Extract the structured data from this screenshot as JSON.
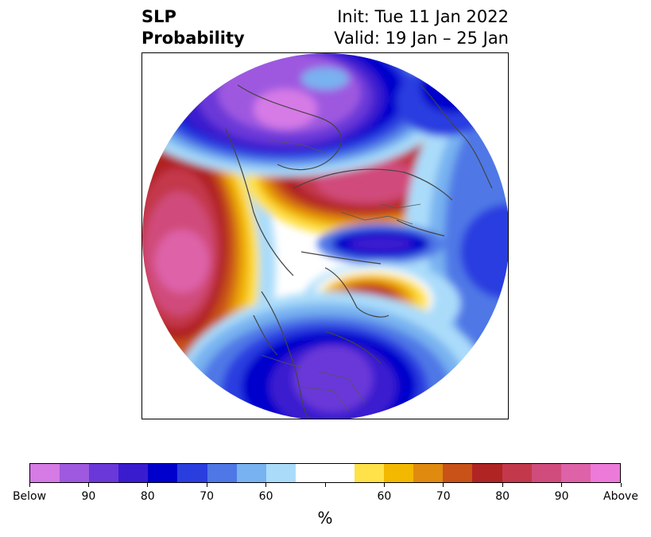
{
  "title": {
    "left_line1": "SLP",
    "left_line2": "Probability",
    "right_line1": "Init: Tue 11 Jan 2022",
    "right_line2": "Valid: 19 Jan – 25 Jan"
  },
  "colorbar": {
    "colors": [
      "#d67ae6",
      "#9e59e0",
      "#6a38d8",
      "#3a1ccf",
      "#0000cc",
      "#2a3ee0",
      "#4f78e6",
      "#78b2f0",
      "#aadcfa",
      "#ffffff",
      "#ffffff",
      "#ffe14a",
      "#f3b800",
      "#e08a10",
      "#c85218",
      "#b02424",
      "#c4384c",
      "#d04c7c",
      "#de62a8",
      "#ec7ad8"
    ],
    "tick_labels": [
      "Below",
      "90",
      "80",
      "70",
      "60",
      "",
      "60",
      "70",
      "80",
      "90",
      "Above"
    ],
    "unit_label": "%"
  },
  "map": {
    "projection": "north-polar-stereographic",
    "anomaly_regions": [
      {
        "region": "north-pacific",
        "category": "above",
        "max_probability": "above 90"
      },
      {
        "region": "arctic-ocean-siberia",
        "category": "above",
        "max_probability": "above 90"
      },
      {
        "region": "north-atlantic",
        "category": "above",
        "max_probability": "80"
      },
      {
        "region": "east-asia",
        "category": "below",
        "max_probability": "below 90"
      },
      {
        "region": "eastern-united-states",
        "category": "below",
        "max_probability": "90"
      },
      {
        "region": "northern-europe-scandinavia",
        "category": "below",
        "max_probability": "80"
      }
    ]
  }
}
